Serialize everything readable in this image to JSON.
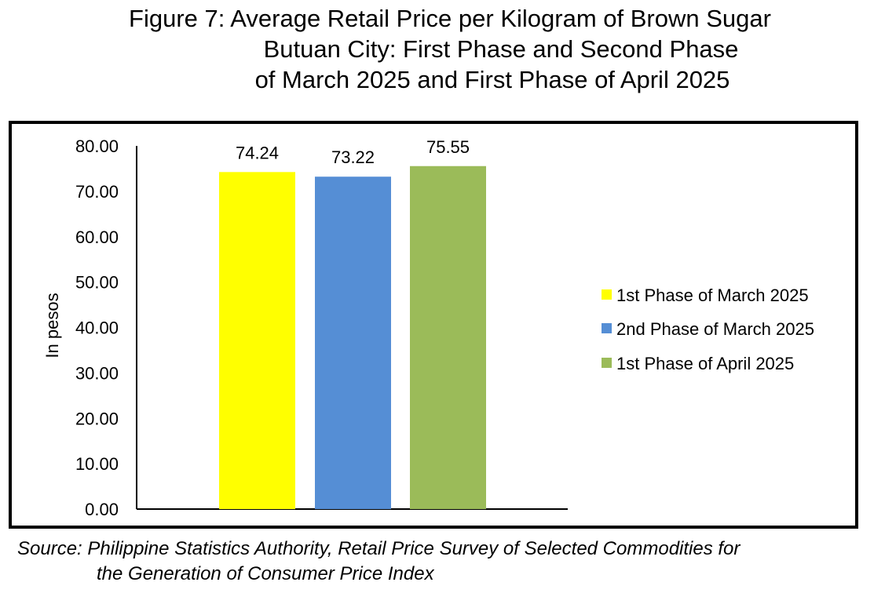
{
  "title_lines": [
    "Figure 7: Average Retail Price per Kilogram of Brown Sugar",
    "Butuan City: First Phase and Second Phase",
    "of March 2025 and First Phase of April 2025"
  ],
  "source_lines": [
    "Source: Philippine Statistics Authority, Retail Price Survey of Selected Commodities for",
    "the Generation of Consumer Price Index"
  ],
  "chart_data": {
    "type": "bar",
    "ylabel": "In pesos",
    "xlabel": "",
    "ylim": [
      0,
      80
    ],
    "yticks": [
      "0.00",
      "10.00",
      "20.00",
      "30.00",
      "40.00",
      "50.00",
      "60.00",
      "70.00",
      "80.00"
    ],
    "grid": false,
    "legend_position": "right",
    "series": [
      {
        "name": "1st Phase of March 2025",
        "value": 74.24,
        "label": "74.24",
        "color": "#FFFF00"
      },
      {
        "name": "2nd Phase of March 2025",
        "value": 73.22,
        "label": "73.22",
        "color": "#558ED5"
      },
      {
        "name": "1st Phase of April 2025",
        "value": 75.55,
        "label": "75.55",
        "color": "#9BBB59"
      }
    ]
  }
}
